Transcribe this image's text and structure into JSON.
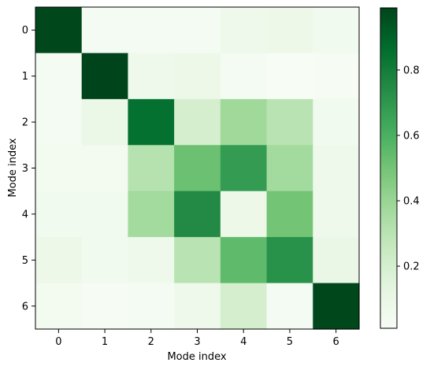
{
  "chart_data": {
    "type": "heatmap",
    "xlabel": "Mode index",
    "ylabel": "Mode index",
    "x_categories": [
      "0",
      "1",
      "2",
      "3",
      "4",
      "5",
      "6"
    ],
    "y_categories": [
      "0",
      "1",
      "2",
      "3",
      "4",
      "5",
      "6"
    ],
    "values": [
      [
        0.98,
        0.03,
        0.03,
        0.03,
        0.07,
        0.08,
        0.05
      ],
      [
        0.03,
        0.99,
        0.07,
        0.08,
        0.03,
        0.01,
        0.02
      ],
      [
        0.03,
        0.09,
        0.85,
        0.2,
        0.38,
        0.3,
        0.05
      ],
      [
        0.04,
        0.04,
        0.31,
        0.52,
        0.68,
        0.37,
        0.07
      ],
      [
        0.05,
        0.05,
        0.37,
        0.75,
        0.08,
        0.5,
        0.07
      ],
      [
        0.08,
        0.05,
        0.07,
        0.3,
        0.55,
        0.72,
        0.1
      ],
      [
        0.04,
        0.02,
        0.03,
        0.07,
        0.2,
        0.03,
        0.98
      ]
    ],
    "colormap": "Greens",
    "colorbar": {
      "ticks": [
        0.2,
        0.4,
        0.6,
        0.8
      ],
      "tick_labels": [
        "0.2",
        "0.4",
        "0.6",
        "0.8"
      ],
      "range": [
        0.01,
        0.99
      ]
    },
    "grid": false,
    "legend": "none"
  }
}
